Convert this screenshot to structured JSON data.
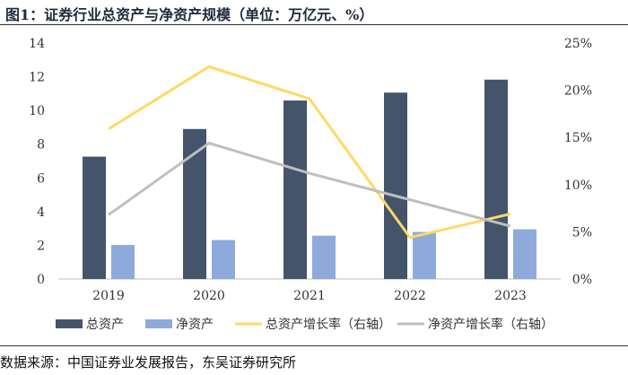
{
  "figure": {
    "title": "图1：证券行业总资产与净资产规模（单位：万亿元、%）",
    "source": "数据来源：中国证券业发展报告，东吴证券研究所"
  },
  "chart_data": {
    "type": "bar",
    "title": "图1：证券行业总资产与净资产规模（单位：万亿元、%）",
    "categories": [
      "2019",
      "2020",
      "2021",
      "2022",
      "2023"
    ],
    "series": [
      {
        "name": "总资产",
        "type": "bar",
        "axis": "left",
        "color": "#44546a",
        "values": [
          7.26,
          8.9,
          10.59,
          11.06,
          11.83
        ]
      },
      {
        "name": "净资产",
        "type": "bar",
        "axis": "left",
        "color": "#8eaadb",
        "values": [
          2.02,
          2.31,
          2.57,
          2.79,
          2.95
        ]
      },
      {
        "name": "总资产增长率（右轴）",
        "type": "line",
        "axis": "right",
        "color": "#ffd966",
        "values": [
          15.9,
          22.5,
          19.1,
          4.4,
          6.9
        ]
      },
      {
        "name": "净资产增长率（右轴）",
        "type": "line",
        "axis": "right",
        "color": "#bfbfbf",
        "values": [
          6.8,
          14.4,
          11.2,
          8.4,
          5.6
        ]
      }
    ],
    "left_axis": {
      "ylim": [
        0,
        14
      ],
      "ticks": [
        "0",
        "2",
        "4",
        "6",
        "8",
        "10",
        "12",
        "14"
      ]
    },
    "right_axis": {
      "ylim": [
        0,
        25
      ],
      "ticks": [
        "0%",
        "5%",
        "10%",
        "15%",
        "20%",
        "25%"
      ]
    },
    "legend": "bottom",
    "grid": false
  }
}
